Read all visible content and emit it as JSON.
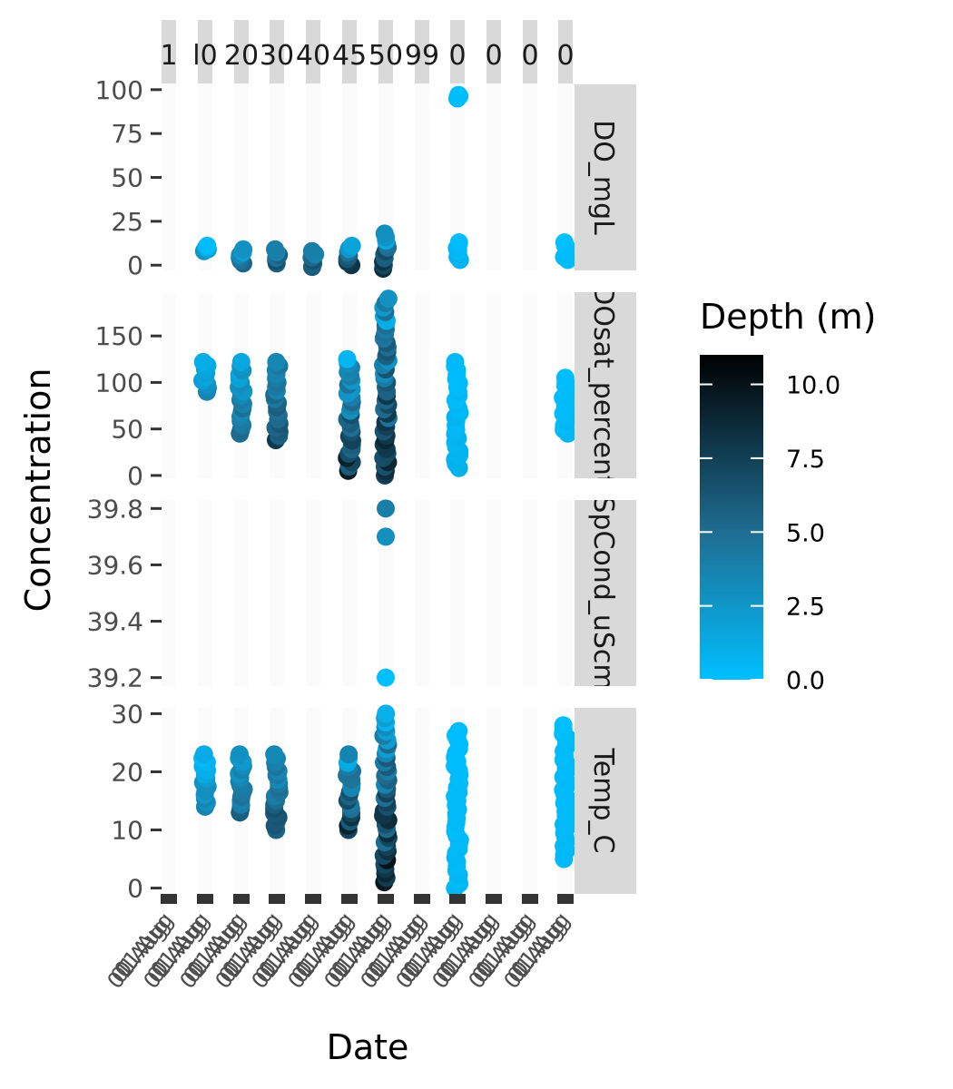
{
  "chart_data": {
    "type": "scatter",
    "xlabel": "Date",
    "ylabel": "Concentration",
    "legend": {
      "title": "Depth (m)",
      "ticks": [
        "0.0",
        "2.5",
        "5.0",
        "7.5",
        "10.0"
      ],
      "tick_values": [
        0,
        2.5,
        5,
        7.5,
        10
      ],
      "range": [
        0,
        11
      ],
      "color_low": "#00bfff",
      "color_mid": "#1f6e93",
      "color_high": "#000000",
      "placement": "right"
    },
    "columns": [
      {
        "label": "1"
      },
      {
        "label": "l0"
      },
      {
        "label": "20"
      },
      {
        "label": "30"
      },
      {
        "label": "40"
      },
      {
        "label": "45"
      },
      {
        "label": "50"
      },
      {
        "label": "99"
      },
      {
        "label": "0"
      },
      {
        "label": "0"
      },
      {
        "label": "0"
      },
      {
        "label": "0"
      }
    ],
    "panels": [
      {
        "label": "DO_mgL",
        "ylim": [
          -3,
          103
        ],
        "yticks": [
          0,
          25,
          50,
          75,
          100
        ],
        "ytick_labels": [
          "0",
          "25",
          "50",
          "75",
          "100"
        ],
        "groups": [
          {
            "col": 1,
            "min": 8,
            "max": 11,
            "dmin": 0,
            "dmax": 3
          },
          {
            "col": 2,
            "min": 1,
            "max": 9,
            "dmin": 1,
            "dmax": 6
          },
          {
            "col": 3,
            "min": 1,
            "max": 9,
            "dmin": 2,
            "dmax": 8
          },
          {
            "col": 4,
            "min": -1,
            "max": 8,
            "dmin": 2,
            "dmax": 8
          },
          {
            "col": 5,
            "min": 0,
            "max": 11,
            "dmin": 0,
            "dmax": 10
          },
          {
            "col": 6,
            "min": -2,
            "max": 18,
            "dmin": 0,
            "dmax": 11
          },
          {
            "col": 8,
            "min": 3,
            "max": 13,
            "dmin": 0,
            "dmax": 1
          },
          {
            "col": 8,
            "min": 95,
            "max": 97,
            "dmin": 0,
            "dmax": 0.3
          },
          {
            "col": 11,
            "min": 3,
            "max": 13,
            "dmin": 0,
            "dmax": 0.5
          }
        ]
      },
      {
        "label": "DOsat_percent",
        "ylim": [
          -3,
          197
        ],
        "yticks": [
          0,
          50,
          100,
          150
        ],
        "ytick_labels": [
          "0",
          "50",
          "100",
          "150"
        ],
        "groups": [
          {
            "col": 1,
            "min": 90,
            "max": 122,
            "dmin": 0,
            "dmax": 4
          },
          {
            "col": 2,
            "min": 45,
            "max": 122,
            "dmin": 1,
            "dmax": 6
          },
          {
            "col": 3,
            "min": 38,
            "max": 122,
            "dmin": 2,
            "dmax": 8
          },
          {
            "col": 5,
            "min": 5,
            "max": 125,
            "dmin": 0,
            "dmax": 10
          },
          {
            "col": 6,
            "min": 0,
            "max": 190,
            "dmin": 0,
            "dmax": 11
          },
          {
            "col": 8,
            "min": 8,
            "max": 122,
            "dmin": 0,
            "dmax": 1
          },
          {
            "col": 11,
            "min": 45,
            "max": 105,
            "dmin": 0,
            "dmax": 0.5
          }
        ]
      },
      {
        "label": "SpCond_uScm",
        "ylim": [
          39.17,
          39.83
        ],
        "yticks": [
          39.2,
          39.4,
          39.6,
          39.8
        ],
        "ytick_labels": [
          "39.2",
          "39.4",
          "39.6",
          "39.8"
        ],
        "points": [
          {
            "col": 6,
            "y": 39.8,
            "d": 4
          },
          {
            "col": 6,
            "y": 39.7,
            "d": 3
          },
          {
            "col": 6,
            "y": 39.2,
            "d": 0
          }
        ]
      },
      {
        "label": "Temp_C",
        "ylim": [
          -1,
          31
        ],
        "yticks": [
          0,
          10,
          20,
          30
        ],
        "ytick_labels": [
          "0",
          "10",
          "20",
          "30"
        ],
        "groups": [
          {
            "col": 1,
            "min": 14,
            "max": 23,
            "dmin": 0,
            "dmax": 4
          },
          {
            "col": 2,
            "min": 13,
            "max": 23,
            "dmin": 1,
            "dmax": 6
          },
          {
            "col": 3,
            "min": 10,
            "max": 23,
            "dmin": 2,
            "dmax": 8
          },
          {
            "col": 5,
            "min": 10,
            "max": 23,
            "dmin": 0,
            "dmax": 10
          },
          {
            "col": 6,
            "min": 1,
            "max": 30,
            "dmin": 0,
            "dmax": 11
          },
          {
            "col": 8,
            "min": 0,
            "max": 27,
            "dmin": 0,
            "dmax": 0.5
          },
          {
            "col": 11,
            "min": 5,
            "max": 28,
            "dmin": 0,
            "dmax": 0.5
          }
        ]
      }
    ]
  }
}
